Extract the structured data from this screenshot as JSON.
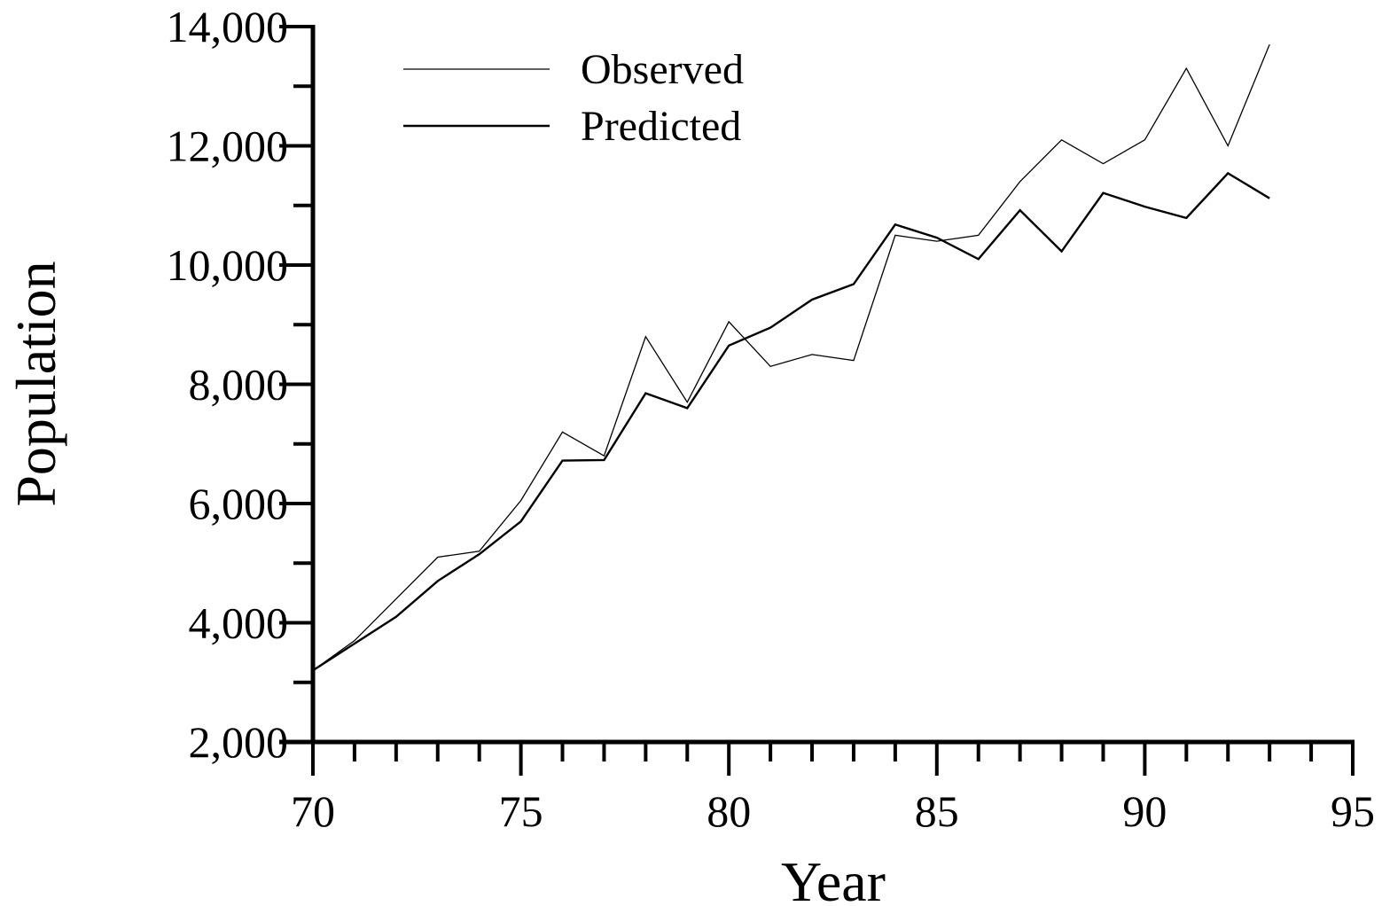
{
  "chart_data": {
    "type": "line",
    "title": "",
    "xlabel": "Year",
    "ylabel": "Population",
    "xlim": [
      70,
      95
    ],
    "ylim": [
      2000,
      14000
    ],
    "x_ticks": [
      70,
      75,
      80,
      85,
      90,
      95
    ],
    "y_ticks": [
      2000,
      4000,
      6000,
      8000,
      10000,
      12000,
      14000
    ],
    "y_tick_labels": [
      "2,000",
      "4,000",
      "6,000",
      "8,000",
      "10,000",
      "12,000",
      "14,000"
    ],
    "grid": false,
    "legend_position": "top-left",
    "x": [
      70,
      71,
      72,
      73,
      74,
      75,
      76,
      77,
      78,
      79,
      80,
      81,
      82,
      83,
      84,
      85,
      86,
      87,
      88,
      89,
      90,
      91,
      92,
      93
    ],
    "series": [
      {
        "name": "Observed",
        "values": [
          3200,
          3700,
          4400,
          5100,
          5200,
          6050,
          7200,
          6800,
          8800,
          7700,
          9050,
          8300,
          8500,
          8400,
          10500,
          10400,
          10500,
          11400,
          12100,
          11700,
          12100,
          13300,
          12000,
          13700
        ]
      },
      {
        "name": "Predicted",
        "values": [
          3200,
          3650,
          4100,
          4700,
          5150,
          5700,
          6720,
          6730,
          7850,
          7600,
          8650,
          8950,
          9420,
          9680,
          10680,
          10460,
          10100,
          10920,
          10230,
          11210,
          10980,
          10790,
          11540,
          11120
        ]
      }
    ]
  }
}
